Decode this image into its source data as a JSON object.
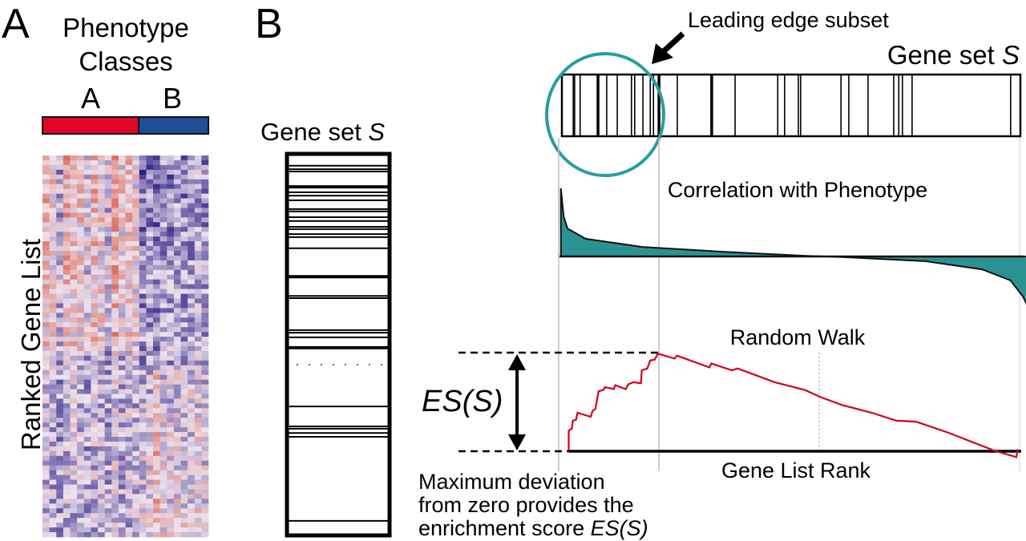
{
  "panel_a": {
    "letter": "A",
    "title_line1": "Phenotype",
    "title_line2": "Classes",
    "class_a_label": "A",
    "class_b_label": "B",
    "class_a_color": "#e0062a",
    "class_b_color": "#1f4e96",
    "heatmap_axis_label": "Ranked Gene List",
    "heatmap_colors": {
      "high": "#d9503a",
      "mid": "#ece2ee",
      "low": "#2e1f85"
    }
  },
  "panel_b": {
    "letter": "B",
    "gene_set_vertical": {
      "label": "Gene set ",
      "label_italic": "S",
      "hit_ranks": [
        33,
        42,
        48,
        88,
        102,
        111,
        123,
        146,
        152,
        167,
        177,
        192,
        198,
        211,
        219,
        248,
        322,
        372,
        378,
        461,
        468,
        480,
        505,
        509,
        660,
        712,
        718,
        729,
        739,
        958
      ],
      "thick_ranks": [
        88,
        322
      ]
    },
    "leading_edge_label": "Leading edge subset",
    "leading_edge_color": "#2a9d9e",
    "gene_set_horizontal": {
      "label": "Gene set ",
      "label_italic": "S",
      "hit_ranks": [
        23,
        26,
        38,
        77,
        96,
        119,
        150,
        157,
        175,
        191,
        198,
        210,
        250,
        325,
        376,
        469,
        484,
        514,
        519,
        607,
        624,
        666,
        722,
        733,
        741,
        762,
        977
      ],
      "thick_ranks": [
        77,
        210,
        325
      ]
    },
    "correlation_label": "Correlation with Phenotype",
    "correlation_fill": "#2a9392",
    "correlation_curve": [
      [
        3,
        1.0
      ],
      [
        9,
        0.59
      ],
      [
        17,
        0.41
      ],
      [
        56,
        0.26
      ],
      [
        178,
        0.14
      ],
      [
        352,
        0.07
      ],
      [
        526,
        0.01
      ],
      [
        613,
        -0.01
      ],
      [
        787,
        -0.07
      ],
      [
        909,
        -0.19
      ],
      [
        970,
        -0.35
      ],
      [
        997,
        -0.59
      ],
      [
        1007,
        -0.73
      ]
    ],
    "random_walk_label": "Random Walk",
    "random_walk_color": "#d0021b",
    "random_walk": [
      [
        20,
        0.01
      ],
      [
        20,
        0.21
      ],
      [
        27,
        0.23
      ],
      [
        29,
        0.31
      ],
      [
        36,
        0.32
      ],
      [
        39,
        0.39
      ],
      [
        68,
        0.35
      ],
      [
        72,
        0.41
      ],
      [
        78,
        0.43
      ],
      [
        85,
        0.61
      ],
      [
        95,
        0.62
      ],
      [
        99,
        0.65
      ],
      [
        118,
        0.63
      ],
      [
        121,
        0.67
      ],
      [
        144,
        0.63
      ],
      [
        150,
        0.68
      ],
      [
        161,
        0.7
      ],
      [
        177,
        0.69
      ],
      [
        179,
        0.82
      ],
      [
        191,
        0.84
      ],
      [
        197,
        0.92
      ],
      [
        207,
        0.93
      ],
      [
        214,
        0.99
      ],
      [
        250,
        0.94
      ],
      [
        255,
        0.97
      ],
      [
        326,
        0.85
      ],
      [
        330,
        0.89
      ],
      [
        375,
        0.82
      ],
      [
        387,
        0.84
      ],
      [
        468,
        0.7
      ],
      [
        534,
        0.62
      ],
      [
        567,
        0.55
      ],
      [
        613,
        0.47
      ],
      [
        679,
        0.39
      ],
      [
        732,
        0.31
      ],
      [
        775,
        0.3
      ],
      [
        844,
        0.19
      ],
      [
        943,
        0.01
      ],
      [
        993,
        -0.06
      ],
      [
        996,
        0.02
      ]
    ],
    "es_label": "ES(S)",
    "x_axis_label": "Gene List Rank",
    "caption_line1": "Maximum deviation",
    "caption_line2": "from zero provides the",
    "caption_line3": "enrichment score ",
    "caption_line3_italic": "ES(S)"
  }
}
